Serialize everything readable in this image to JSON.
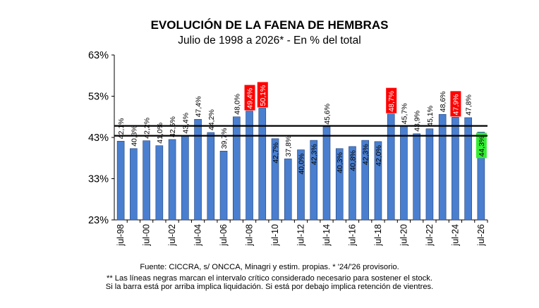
{
  "chart_data": {
    "type": "bar",
    "title": "EVOLUCIÓN DE LA FAENA DE HEMBRAS",
    "subtitle": "Julio de 1998 a 2026* - En % del total",
    "ylim": [
      23,
      63
    ],
    "y_ticks": [
      "23%",
      "33%",
      "43%",
      "53%",
      "63%"
    ],
    "y_tick_values": [
      23,
      33,
      43,
      53,
      63
    ],
    "categories": [
      "jul-98",
      "jul-99",
      "jul-00",
      "jul-01",
      "jul-02",
      "jul-03",
      "jul-04",
      "jul-05",
      "jul-06",
      "jul-07",
      "jul-08",
      "jul-09",
      "jul-10",
      "jul-11",
      "jul-12",
      "jul-13",
      "jul-14",
      "jul-15",
      "jul-16",
      "jul-17",
      "jul-18",
      "jul-19",
      "jul-20",
      "jul-21",
      "jul-22",
      "jul-23",
      "jul-24",
      "jul-25",
      "jul-26"
    ],
    "x_tick_labels": [
      "jul-98",
      "",
      "jul-00",
      "",
      "jul-02",
      "",
      "jul-04",
      "",
      "jul-06",
      "",
      "jul-08",
      "",
      "jul-10",
      "",
      "jul-12",
      "",
      "jul-14",
      "",
      "jul-16",
      "",
      "jul-18",
      "",
      "jul-20",
      "",
      "jul-22",
      "",
      "jul-24",
      "",
      "jul-26"
    ],
    "values": [
      42.1,
      40.3,
      42.2,
      41.0,
      42.5,
      43.4,
      47.4,
      44.2,
      39.7,
      48.0,
      49.4,
      50.1,
      42.7,
      37.8,
      40.0,
      42.3,
      45.6,
      40.3,
      40.8,
      42.3,
      42.0,
      48.7,
      45.7,
      43.9,
      45.1,
      48.6,
      47.9,
      47.8,
      44.3
    ],
    "data_labels": [
      "42,1%",
      "40,3%",
      "42,2%",
      "41,0%",
      "42,5%",
      "43,4%",
      "47,4%",
      "44,2%",
      "39,7%",
      "48,0%",
      "49,4%",
      "50,1%",
      "42,7%",
      "37,8%",
      "40,0%",
      "42,3%",
      "45,6%",
      "40,3%",
      "40,8%",
      "42,3%",
      "42,0%",
      "48,7%",
      "45,7%",
      "43,9%",
      "45,1%",
      "48,6%",
      "47,9%",
      "47,8%",
      "44,3%"
    ],
    "label_inside": [
      false,
      false,
      false,
      false,
      false,
      false,
      false,
      false,
      false,
      false,
      false,
      false,
      true,
      false,
      true,
      true,
      false,
      true,
      true,
      true,
      true,
      false,
      false,
      false,
      false,
      false,
      false,
      false,
      true
    ],
    "highlight_red": [
      10,
      11,
      21,
      26
    ],
    "highlight_green": [
      28
    ],
    "reference_lines": [
      45.8,
      43.4
    ],
    "bar_color": "#4a7fcf",
    "bar_border": "#1f3f78",
    "red_label_bg": "#ff0000",
    "green_label_bg": "#33ee33"
  },
  "footnotes": {
    "source": "Fuente: CICCRA, s/ ONCCA, Minagri y estim. propias. * '24/'26  provisorio.",
    "line1": "** Las líneas negras marcan el intervalo crítico considerado necesario para sostener el stock.",
    "line2": "Si la barra está por arriba implica liquidación. Si está por debajo implica retención de vientres."
  }
}
